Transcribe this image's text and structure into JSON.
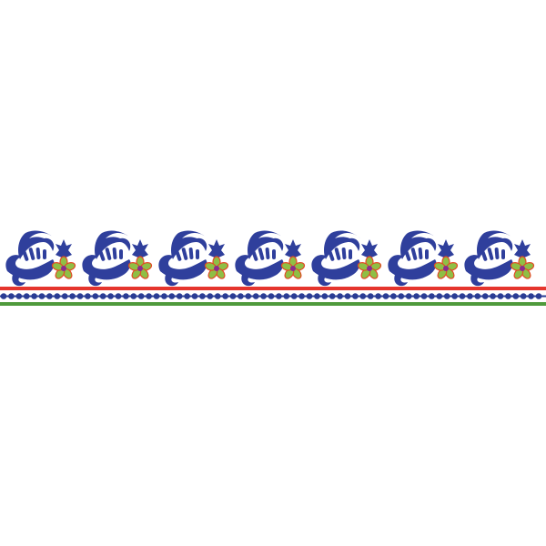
{
  "design": {
    "type": "embroidery-border",
    "repeat_count": 7,
    "colors": {
      "background": "#ffffff",
      "scroll_blue": "#2f3f9c",
      "dot_blue": "#2a3c94",
      "red_line": "#e5352d",
      "green_line": "#4f9a3c",
      "petal_green": "#8fbf45",
      "petal_outline": "#e24a25",
      "flower_center": "#8a2b8e"
    }
  }
}
